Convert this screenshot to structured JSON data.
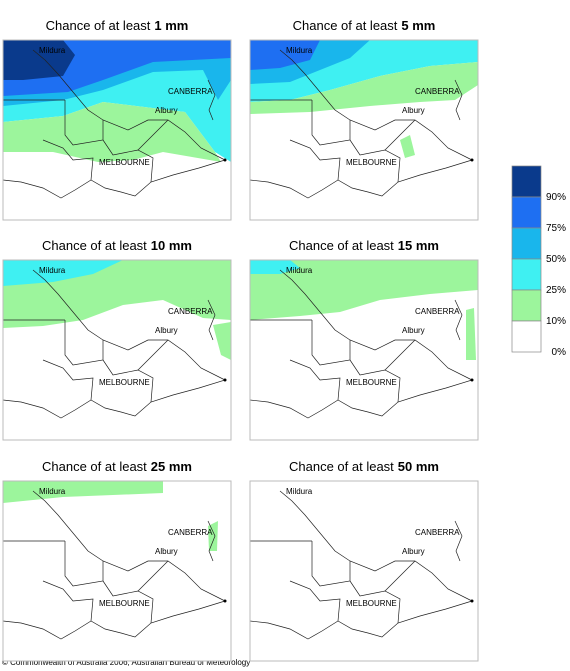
{
  "panels": [
    {
      "prefix": "Chance of at least",
      "amount": "1 mm"
    },
    {
      "prefix": "Chance of at least",
      "amount": "5 mm"
    },
    {
      "prefix": "Chance of at least",
      "amount": "10 mm"
    },
    {
      "prefix": "Chance of at least",
      "amount": "15 mm"
    },
    {
      "prefix": "Chance of at least",
      "amount": "25 mm"
    },
    {
      "prefix": "Chance of at least",
      "amount": "50 mm"
    }
  ],
  "places": [
    "Mildura",
    "CANBERRA",
    "Albury",
    "MELBOURNE"
  ],
  "legend": {
    "labels": [
      "90%",
      "75%",
      "50%",
      "25%",
      "10%",
      "0%"
    ],
    "colors": [
      "#0a3a8c",
      "#1e6ff2",
      "#19b6ec",
      "#3ff0f2",
      "#9cf59c",
      "#ffffff"
    ]
  },
  "footer": "© Commonwealth of Australia 2006, Australian Bureau of Meteorology"
}
